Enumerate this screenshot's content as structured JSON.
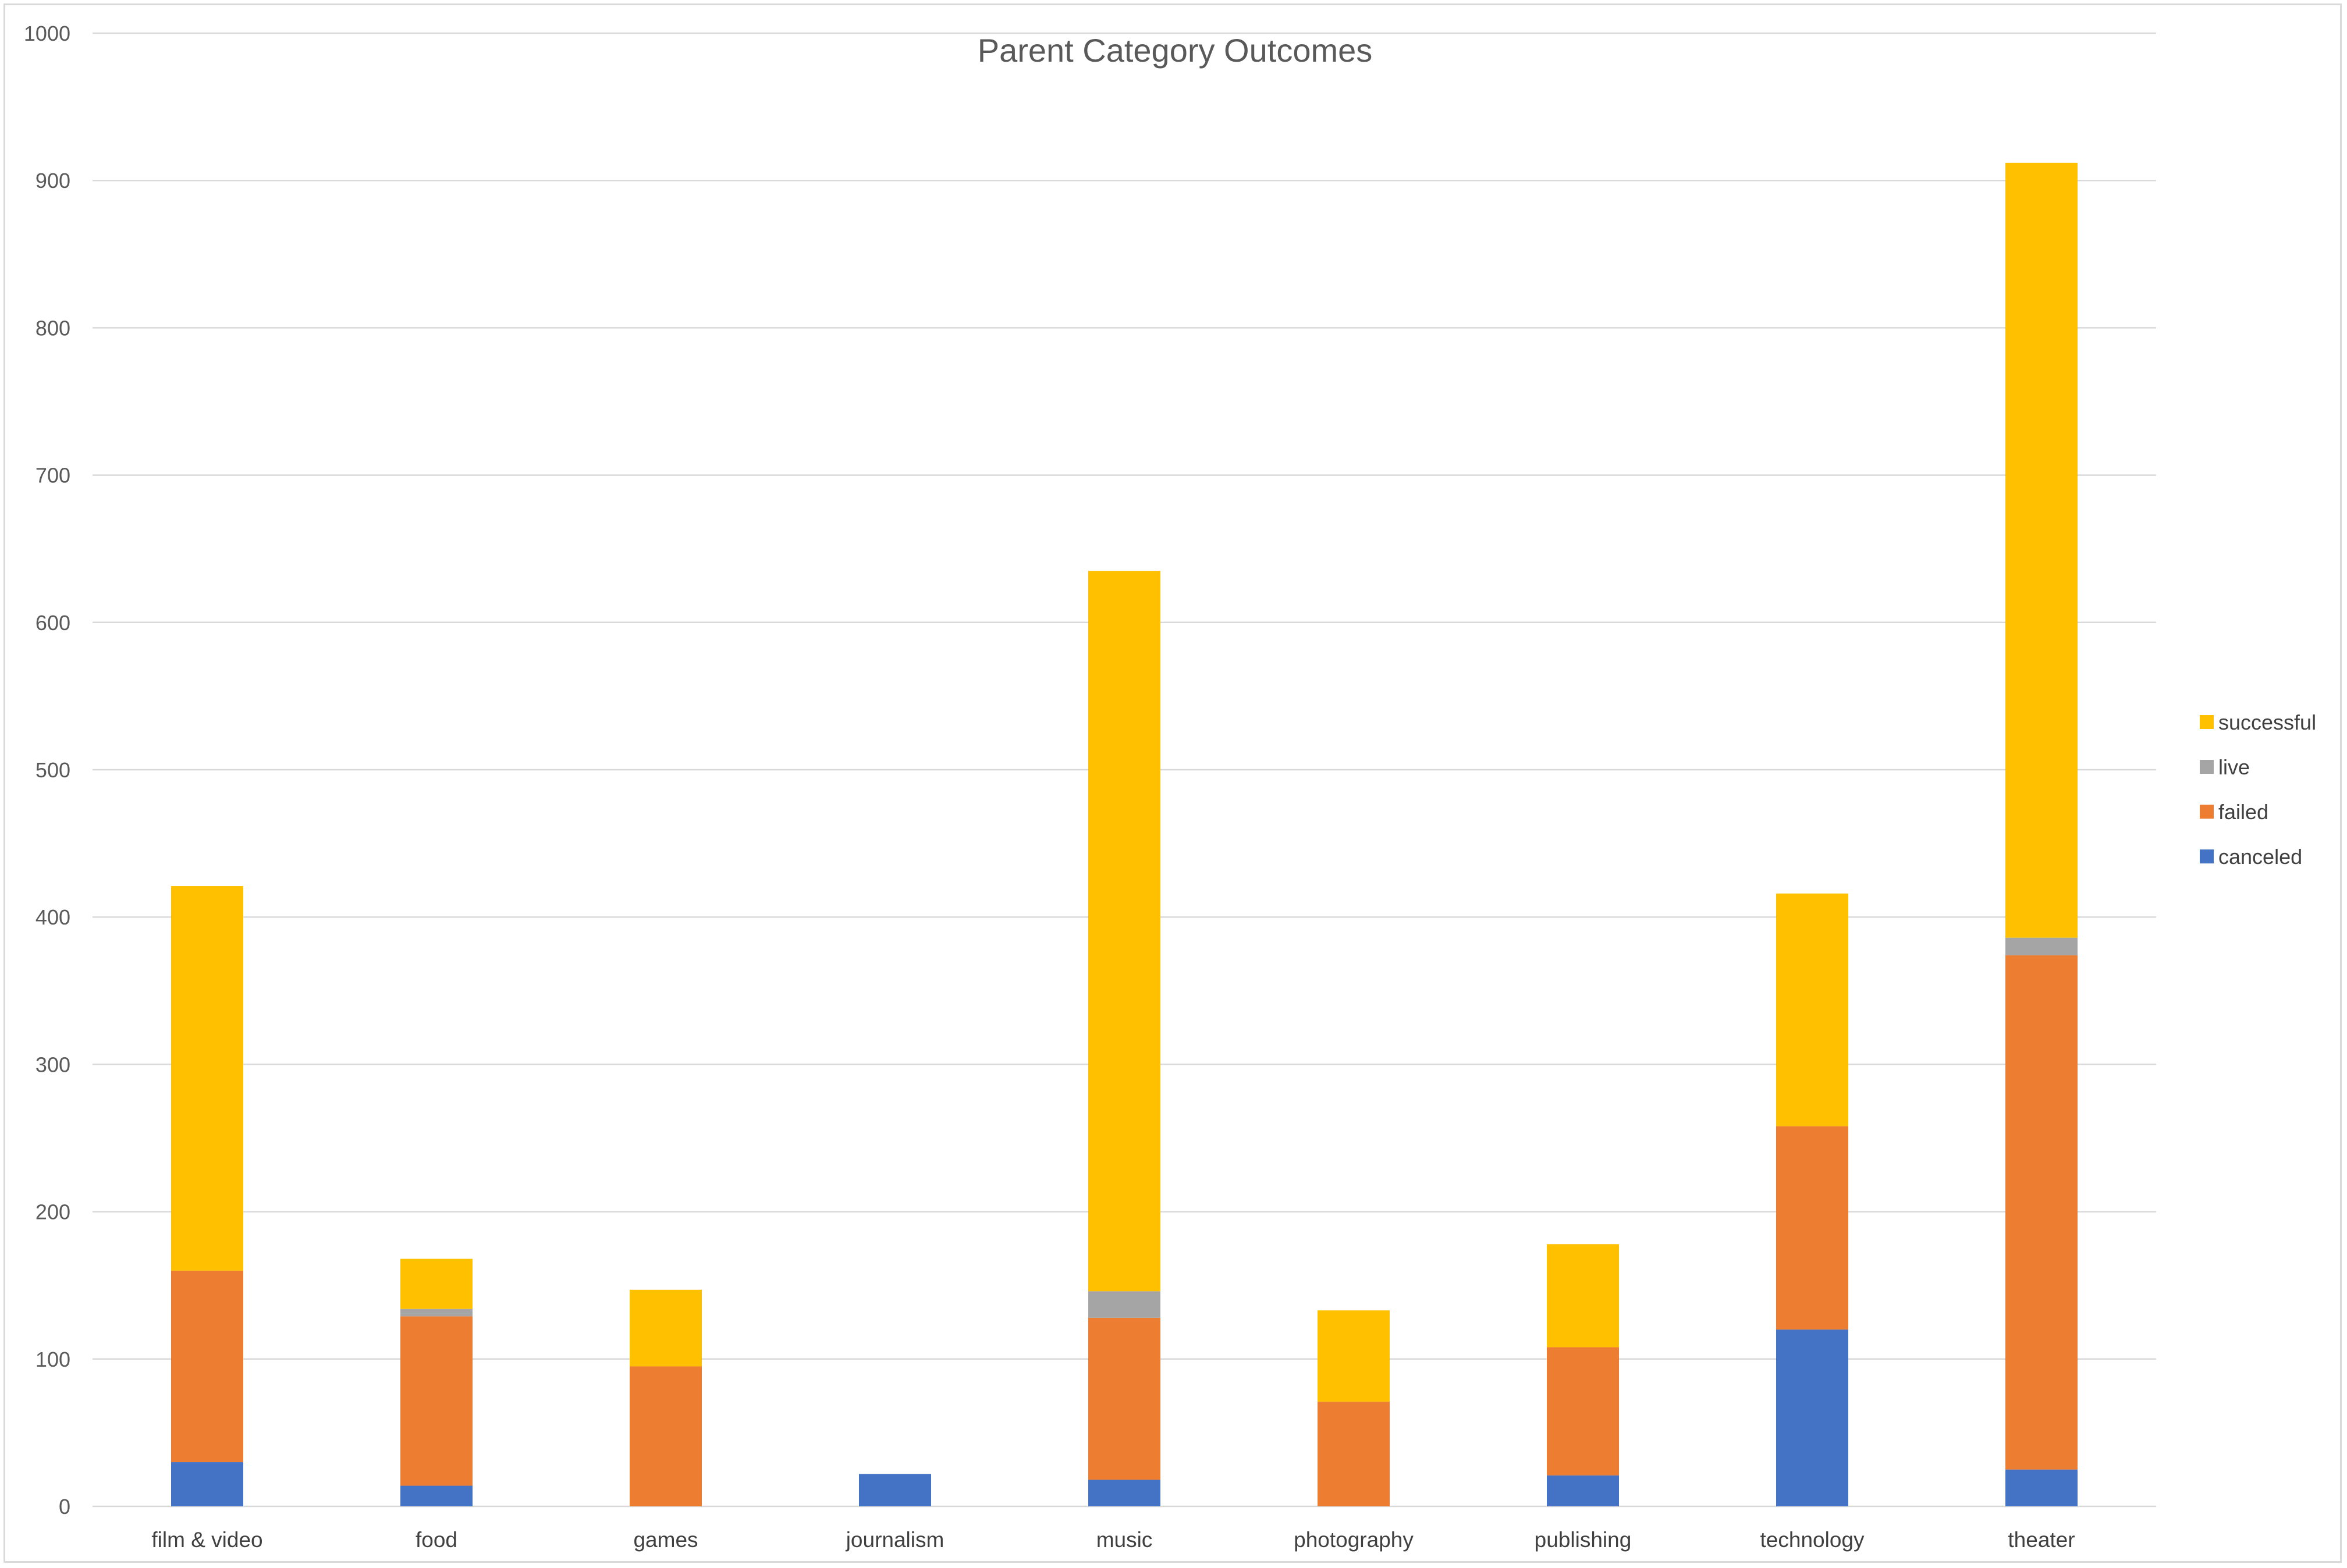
{
  "chart_data": {
    "type": "bar",
    "stacked": true,
    "title": "Parent Category Outcomes",
    "xlabel": "",
    "ylabel": "",
    "ylim": [
      0,
      1000
    ],
    "yticks": [
      0,
      100,
      200,
      300,
      400,
      500,
      600,
      700,
      800,
      900,
      1000
    ],
    "grid": true,
    "legend_position": "right",
    "categories": [
      "film & video",
      "food",
      "games",
      "journalism",
      "music",
      "photography",
      "publishing",
      "technology",
      "theater"
    ],
    "series": [
      {
        "name": "canceled",
        "color": "#4472C4",
        "values": [
          30,
          14,
          0,
          22,
          18,
          0,
          21,
          120,
          25
        ]
      },
      {
        "name": "failed",
        "color": "#ED7D31",
        "values": [
          130,
          115,
          95,
          0,
          110,
          71,
          87,
          138,
          349
        ]
      },
      {
        "name": "live",
        "color": "#A5A5A5",
        "values": [
          0,
          5,
          0,
          0,
          18,
          0,
          0,
          0,
          12
        ]
      },
      {
        "name": "successful",
        "color": "#FFC000",
        "values": [
          261,
          34,
          52,
          0,
          489,
          62,
          70,
          158,
          526
        ]
      }
    ],
    "legend_order": [
      "successful",
      "live",
      "failed",
      "canceled"
    ]
  }
}
